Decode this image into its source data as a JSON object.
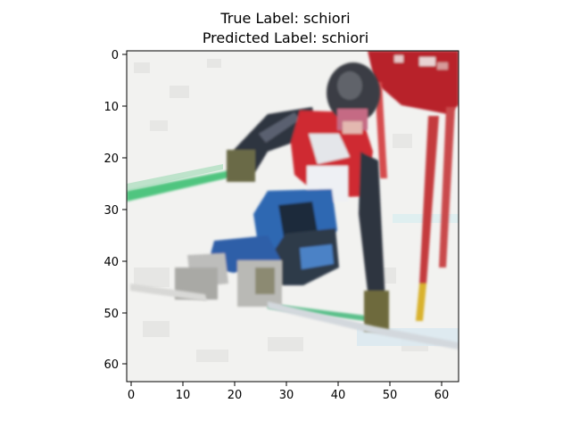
{
  "figure": {
    "title_line_1": "True Label: schiori",
    "title_line_2": "Predicted Label: schiori"
  },
  "image": {
    "subject": "ski racer carving a turn through red gates on snow",
    "pixel_grid": "64x64 (low resolution, pixelated)",
    "colors": {
      "snow": "#f1f1ef",
      "gate_red": "#b8232c",
      "bib_red": "#cf2a30",
      "suit_dark": "#2e3440",
      "suit_blue": "#2e67b2",
      "helmet": "#3a3d44",
      "pole_green": "#4fc57f",
      "pole_yellow": "#d9b22f",
      "goggles_pink": "#c56a84"
    }
  },
  "axes": {
    "x_ticks": [
      "0",
      "10",
      "20",
      "30",
      "40",
      "50",
      "60"
    ],
    "y_ticks": [
      "0",
      "10",
      "20",
      "30",
      "40",
      "50",
      "60"
    ]
  }
}
